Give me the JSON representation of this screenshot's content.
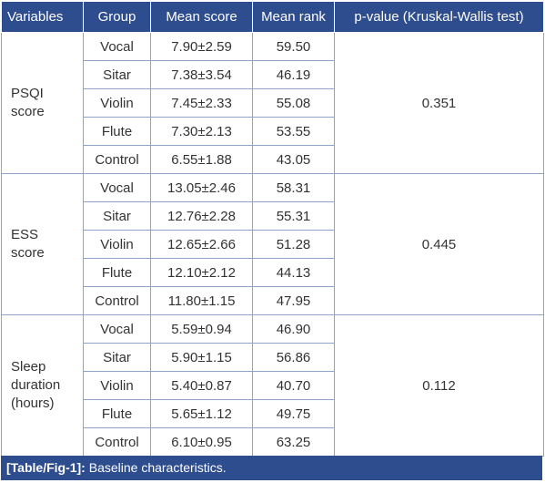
{
  "headers": [
    "Variables",
    "Group",
    "Mean score",
    "Mean rank",
    "p-value (Kruskal-Wallis test)"
  ],
  "sections": [
    {
      "variable_lines": [
        "PSQI",
        "score"
      ],
      "p_value": "0.351",
      "rows": [
        {
          "group": "Vocal",
          "mean_score": "7.90±2.59",
          "mean_rank": "59.50"
        },
        {
          "group": "Sitar",
          "mean_score": "7.38±3.54",
          "mean_rank": "46.19"
        },
        {
          "group": "Violin",
          "mean_score": "7.45±2.33",
          "mean_rank": "55.08"
        },
        {
          "group": "Flute",
          "mean_score": "7.30±2.13",
          "mean_rank": "53.55"
        },
        {
          "group": "Control",
          "mean_score": "6.55±1.88",
          "mean_rank": "43.05"
        }
      ]
    },
    {
      "variable_lines": [
        "ESS",
        "score"
      ],
      "p_value": "0.445",
      "rows": [
        {
          "group": "Vocal",
          "mean_score": "13.05±2.46",
          "mean_rank": "58.31"
        },
        {
          "group": "Sitar",
          "mean_score": "12.76±2.28",
          "mean_rank": "55.31"
        },
        {
          "group": "Violin",
          "mean_score": "12.65±2.66",
          "mean_rank": "51.28"
        },
        {
          "group": "Flute",
          "mean_score": "12.10±2.12",
          "mean_rank": "44.13"
        },
        {
          "group": "Control",
          "mean_score": "11.80±1.15",
          "mean_rank": "47.95"
        }
      ]
    },
    {
      "variable_lines": [
        "Sleep",
        "duration",
        "(hours)"
      ],
      "p_value": "0.112",
      "rows": [
        {
          "group": "Vocal",
          "mean_score": "5.59±0.94",
          "mean_rank": "46.90"
        },
        {
          "group": "Sitar",
          "mean_score": "5.90±1.15",
          "mean_rank": "56.86"
        },
        {
          "group": "Violin",
          "mean_score": "5.40±0.87",
          "mean_rank": "40.70"
        },
        {
          "group": "Flute",
          "mean_score": "5.65±1.12",
          "mean_rank": "49.75"
        },
        {
          "group": "Control",
          "mean_score": "6.10±0.95",
          "mean_rank": "63.25"
        }
      ]
    }
  ],
  "caption": {
    "label": "[Table/Fig-1]:",
    "text": "Baseline characteristics."
  },
  "colors": {
    "header_bg": "#2e4d8f",
    "border": "#8fa5c7"
  }
}
